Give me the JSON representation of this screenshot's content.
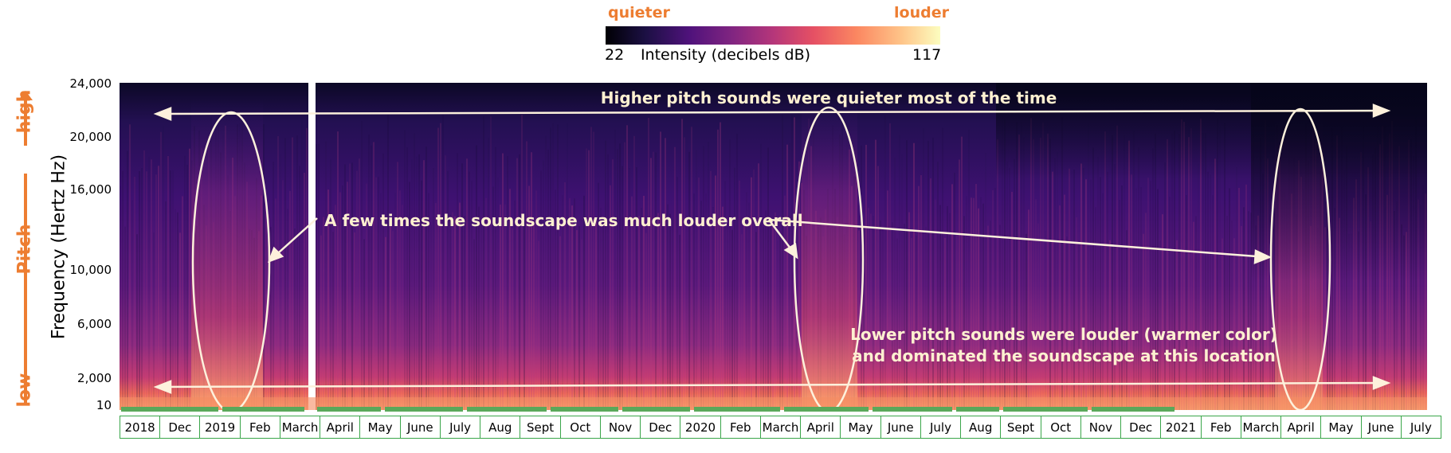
{
  "colorbar": {
    "left_label": "quieter",
    "right_label": "louder",
    "min": "22",
    "max": "117",
    "title": "Intensity  (decibels dB)"
  },
  "y_axis": {
    "label": "Frequency (Hertz Hz)",
    "ticks": [
      "24,000",
      "20,000",
      "16,000",
      "10,000",
      "6,000",
      "2,000",
      "10"
    ],
    "pitch_label": "Pitch",
    "high_label": "high",
    "low_label": "low"
  },
  "chart_data": {
    "type": "heatmap",
    "title": "",
    "xlabel": "",
    "ylabel": "Frequency (Hertz Hz)",
    "y_ticks": [
      24000,
      20000,
      16000,
      10000,
      6000,
      2000,
      10
    ],
    "color_range_db": [
      22,
      117
    ],
    "x_months": [
      "2018",
      "Dec",
      "2019",
      "Feb",
      "March",
      "April",
      "May",
      "June",
      "July",
      "Aug",
      "Sept",
      "Oct",
      "Nov",
      "Dec",
      "2020",
      "Feb",
      "March",
      "April",
      "May",
      "June",
      "July",
      "Aug",
      "Sept",
      "Oct",
      "Nov",
      "Dec",
      "2021",
      "Feb",
      "March",
      "April",
      "May",
      "June",
      "July"
    ],
    "annotations": [
      "Higher pitch sounds were quieter most of the time",
      "A few times the soundscape was much louder overall",
      "Lower pitch sounds were louder (warmer color)",
      "and dominated the soundscape at this location"
    ]
  },
  "annotations": {
    "top": "Higher pitch sounds were quieter most of the time",
    "middle": "A few times the soundscape was much louder overall",
    "bottom_line1": "Lower pitch sounds were louder (warmer color)",
    "bottom_line2": "and dominated the soundscape at this location"
  },
  "colors": {
    "accent_orange": "#ed7d31",
    "month_border": "#3aa64a",
    "annotation": "#fef0d0"
  }
}
